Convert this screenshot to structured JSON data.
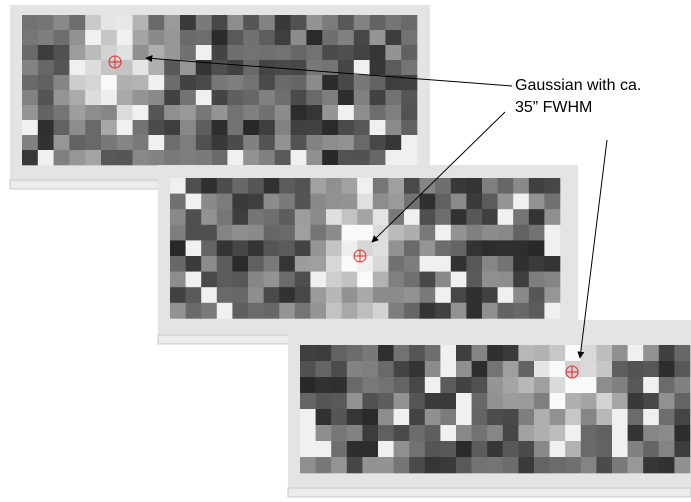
{
  "annotation": {
    "lines": [
      "Gaussian with ca.",
      "35” FWHM"
    ]
  }
}
